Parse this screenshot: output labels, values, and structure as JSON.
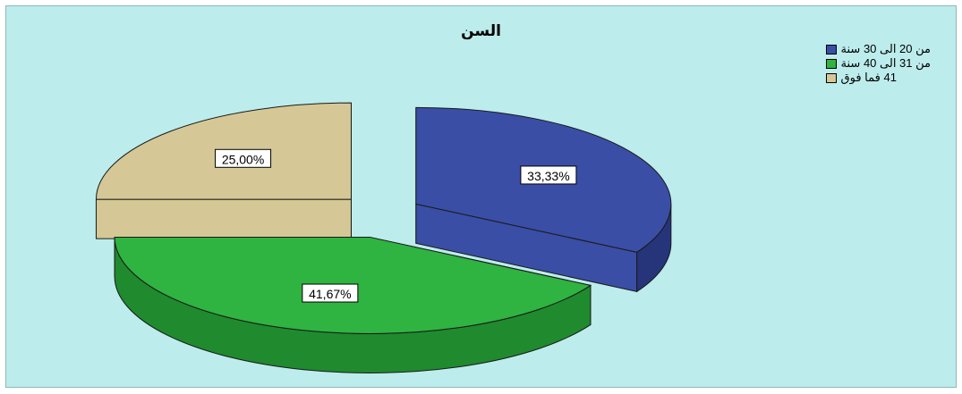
{
  "chart_data": {
    "type": "pie",
    "title": "السن",
    "legend_position": "top-right",
    "exploded": true,
    "three_d": true,
    "slices": [
      {
        "label": "من 20 الى 30 سنة",
        "value": 33.33,
        "display": "33,33%",
        "color": "#3a4ea6",
        "dark": "#26347a"
      },
      {
        "label": "من 31 الى 40 سنة",
        "value": 41.67,
        "display": "41,67%",
        "color": "#2fb341",
        "dark": "#1f8a2e"
      },
      {
        "label": "41 فما فوق",
        "value": 25.0,
        "display": "25,00%",
        "color": "#d5c896",
        "dark": "#a89c6e"
      }
    ]
  }
}
